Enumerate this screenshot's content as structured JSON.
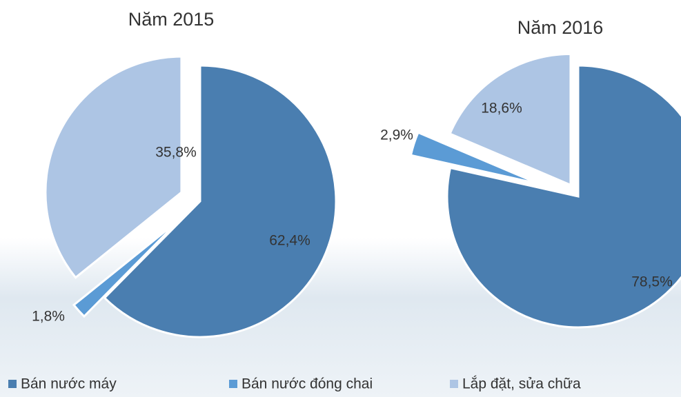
{
  "legend": {
    "categories": [
      "Bán nước máy",
      "Bán nước đóng chai",
      "Lắp đặt, sửa chữa"
    ],
    "colors": [
      "#4a7eb0",
      "#5b9bd5",
      "#adc5e4"
    ]
  },
  "chart_data": [
    {
      "type": "pie",
      "title": "Năm 2015",
      "values": [
        62.4,
        1.8,
        35.8
      ],
      "value_labels": [
        "62,4%",
        "1,8%",
        "35,8%"
      ]
    },
    {
      "type": "pie",
      "title": "Năm 2016",
      "values": [
        78.5,
        2.9,
        18.6
      ],
      "value_labels": [
        "78,5%",
        "2,9%",
        "18,6%"
      ]
    }
  ]
}
